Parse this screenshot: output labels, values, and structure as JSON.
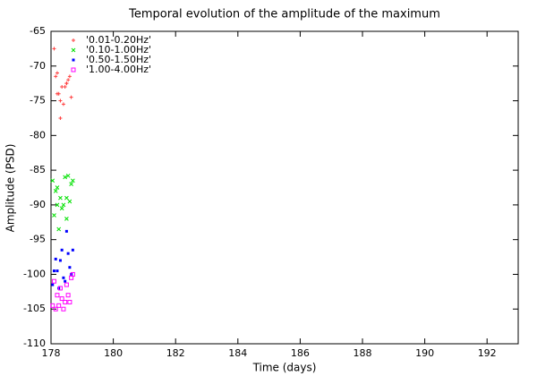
{
  "chart_data": {
    "type": "scatter",
    "title": "Temporal evolution of the amplitude of the maximum",
    "x_label": "Time (days)",
    "y_label": "Amplitude (PSD)",
    "xlim": [
      178,
      193
    ],
    "xticks": [
      178,
      180,
      182,
      184,
      186,
      188,
      190,
      192
    ],
    "ylim": [
      -110,
      -65
    ],
    "yticks": [
      -110,
      -105,
      -100,
      -95,
      -90,
      -85,
      -80,
      -75,
      -70,
      -65
    ],
    "legend": "top-left",
    "series": [
      {
        "name": "'0.01-0.20Hz'",
        "color": "#ff4040",
        "marker": "plus",
        "x": [
          178.1,
          178.15,
          178.2,
          178.25,
          178.3,
          178.35,
          178.4,
          178.45,
          178.5,
          178.55,
          178.6,
          178.65,
          178.2,
          178.5,
          178.3
        ],
        "values": [
          -67.5,
          -71.5,
          -74,
          -74,
          -77.5,
          -73,
          -75.5,
          -73,
          -72.5,
          -72,
          -71.5,
          -74.5,
          -71,
          -72.5,
          -75
        ]
      },
      {
        "name": "'0.10-1.00Hz'",
        "color": "#00e000",
        "marker": "cross",
        "x": [
          178.05,
          178.1,
          178.15,
          178.2,
          178.25,
          178.3,
          178.35,
          178.4,
          178.45,
          178.5,
          178.55,
          178.6,
          178.65,
          178.7,
          178.2,
          178.5
        ],
        "values": [
          -86.5,
          -91.5,
          -88,
          -90,
          -93.5,
          -89,
          -90.5,
          -90,
          -86,
          -89,
          -85.8,
          -89.5,
          -87,
          -86.5,
          -87.5,
          -92
        ]
      },
      {
        "name": "'0.50-1.50Hz'",
        "color": "#0000ff",
        "marker": "square",
        "x": [
          178.05,
          178.1,
          178.15,
          178.2,
          178.25,
          178.3,
          178.35,
          178.4,
          178.45,
          178.5,
          178.55,
          178.6,
          178.65,
          178.7
        ],
        "values": [
          -101.5,
          -99.5,
          -97.8,
          -99.5,
          -102,
          -98,
          -96.5,
          -100.5,
          -101,
          -93.8,
          -97,
          -99,
          -100,
          -96.5
        ]
      },
      {
        "name": "'1.00-4.00Hz'",
        "color": "#ff00ff",
        "marker": "open-square",
        "x": [
          178.05,
          178.1,
          178.15,
          178.2,
          178.25,
          178.3,
          178.35,
          178.4,
          178.45,
          178.5,
          178.55,
          178.6,
          178.65,
          178.7
        ],
        "values": [
          -104.5,
          -101,
          -105,
          -103,
          -104.5,
          -102,
          -103.5,
          -105,
          -104,
          -101.5,
          -103,
          -104,
          -100.5,
          -100
        ]
      }
    ]
  }
}
